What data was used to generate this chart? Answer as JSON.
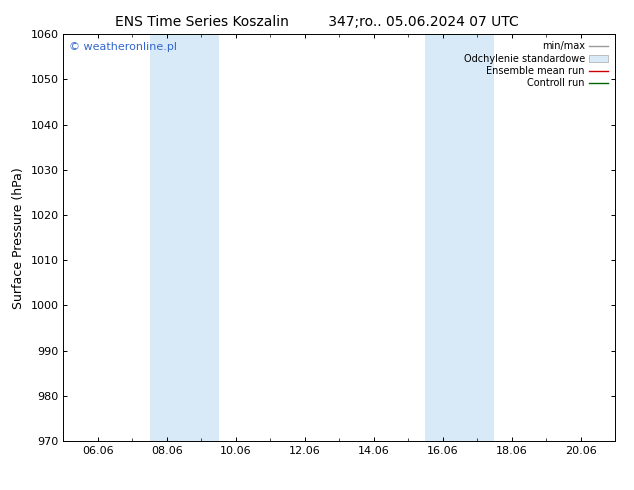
{
  "title_left": "ENS Time Series Koszalin",
  "title_right": "347;ro.. 05.06.2024 07 UTC",
  "ylabel": "Surface Pressure (hPa)",
  "ylim": [
    970,
    1060
  ],
  "yticks": [
    970,
    980,
    990,
    1000,
    1010,
    1020,
    1030,
    1040,
    1050,
    1060
  ],
  "x_min": 0,
  "x_max": 16,
  "xtick_labels": [
    "06.06",
    "08.06",
    "10.06",
    "12.06",
    "14.06",
    "16.06",
    "18.06",
    "20.06"
  ],
  "xtick_positions": [
    1,
    3,
    5,
    7,
    9,
    11,
    13,
    15
  ],
  "shaded_regions": [
    {
      "x_start": 2.5,
      "x_end": 4.5,
      "color": "#d8eaf8"
    },
    {
      "x_start": 10.5,
      "x_end": 12.5,
      "color": "#d8eaf8"
    }
  ],
  "watermark_text": "© weatheronline.pl",
  "watermark_color": "#3366cc",
  "legend_items": [
    {
      "label": "min/max",
      "type": "line",
      "color": "#999999",
      "lw": 1.0
    },
    {
      "label": "Odchylenie standardowe",
      "type": "patch",
      "color": "#d8eaf8",
      "edgecolor": "#aaaaaa"
    },
    {
      "label": "Ensemble mean run",
      "type": "line",
      "color": "#cc0000",
      "lw": 1.0
    },
    {
      "label": "Controll run",
      "type": "line",
      "color": "#006600",
      "lw": 1.0
    }
  ],
  "bg_color": "#ffffff",
  "tick_fontsize": 8,
  "label_fontsize": 9,
  "title_fontsize": 10,
  "watermark_fontsize": 8,
  "legend_fontsize": 7
}
